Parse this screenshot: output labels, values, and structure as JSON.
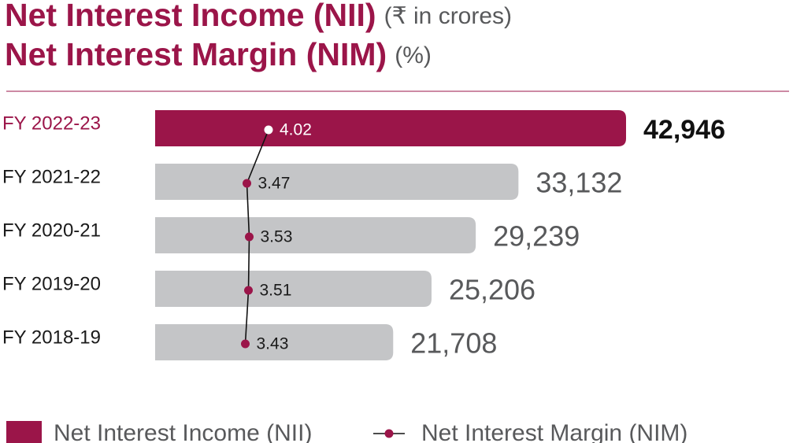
{
  "chart_data": {
    "type": "bar-line",
    "title": "Net Interest Income (NII)",
    "title_unit": "(₹ in crores)",
    "subtitle": "Net Interest Margin (NIM)",
    "subtitle_unit": "(%)",
    "categories": [
      "FY 2022-23",
      "FY 2021-22",
      "FY 2020-21",
      "FY 2019-20",
      "FY 2018-19"
    ],
    "series": [
      {
        "name": "Net Interest Income (NII)",
        "type": "bar",
        "color": "#9b1549",
        "bar_colors": [
          "#9b1549",
          "#c4c5c7",
          "#c4c5c7",
          "#c4c5c7",
          "#c4c5c7"
        ],
        "values": [
          42946,
          33132,
          29239,
          25206,
          21708
        ],
        "value_labels": [
          "42,946",
          "33,132",
          "29,239",
          "25,206",
          "21,708"
        ]
      },
      {
        "name": "Net Interest Margin (NIM)",
        "type": "line",
        "color": "#9b1549",
        "values": [
          4.02,
          3.47,
          3.53,
          3.51,
          3.43
        ]
      }
    ],
    "orientation": "horizontal",
    "legend": "bottom"
  }
}
